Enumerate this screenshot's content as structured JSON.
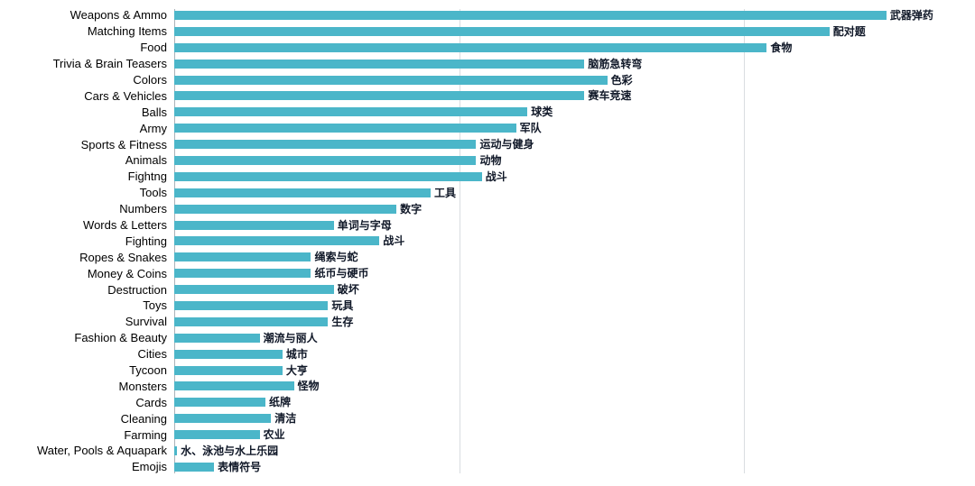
{
  "chart_data": {
    "type": "bar",
    "orientation": "horizontal",
    "title": "",
    "xlabel": "",
    "ylabel": "",
    "legend": false,
    "grid": true,
    "xlim": [
      0,
      135
    ],
    "gridlines_x": [
      50,
      100
    ],
    "bar_color": "#4bb6c9",
    "categories": [
      "Weapons & Ammo",
      "Matching Items",
      "Food",
      "Trivia & Brain Teasers",
      "Colors",
      "Cars & Vehicles",
      "Balls",
      "Army",
      "Sports & Fitness",
      "Animals",
      "Fightng",
      "Tools",
      "Numbers",
      "Words & Letters",
      "Fighting",
      "Ropes & Snakes",
      "Money & Coins",
      "Destruction",
      "Toys",
      "Survival",
      "Fashion & Beauty",
      "Cities",
      "Tycoon",
      "Monsters",
      "Cards",
      "Cleaning",
      "Farming",
      "Water, Pools & Aquapark",
      "Emojis"
    ],
    "value_labels": [
      "武器弹药",
      "配对题",
      "食物",
      "脑筋急转弯",
      "色彩",
      "赛车竞速",
      "球类",
      "军队",
      "运动与健身",
      "动物",
      "战斗",
      "工具",
      "数字",
      "单词与字母",
      "战斗",
      "绳索与蛇",
      "纸币与硬币",
      "破坏",
      "玩具",
      "生存",
      "潮流与丽人",
      "城市",
      "大亨",
      "怪物",
      "纸牌",
      "清洁",
      "农业",
      "水、泳池与水上乐园",
      "表情符号"
    ],
    "values": [
      125,
      115,
      104,
      72,
      76,
      72,
      62,
      60,
      53,
      53,
      54,
      45,
      39,
      28,
      36,
      24,
      24,
      28,
      27,
      27,
      15,
      19,
      19,
      21,
      16,
      17,
      15,
      0.5,
      7
    ]
  }
}
